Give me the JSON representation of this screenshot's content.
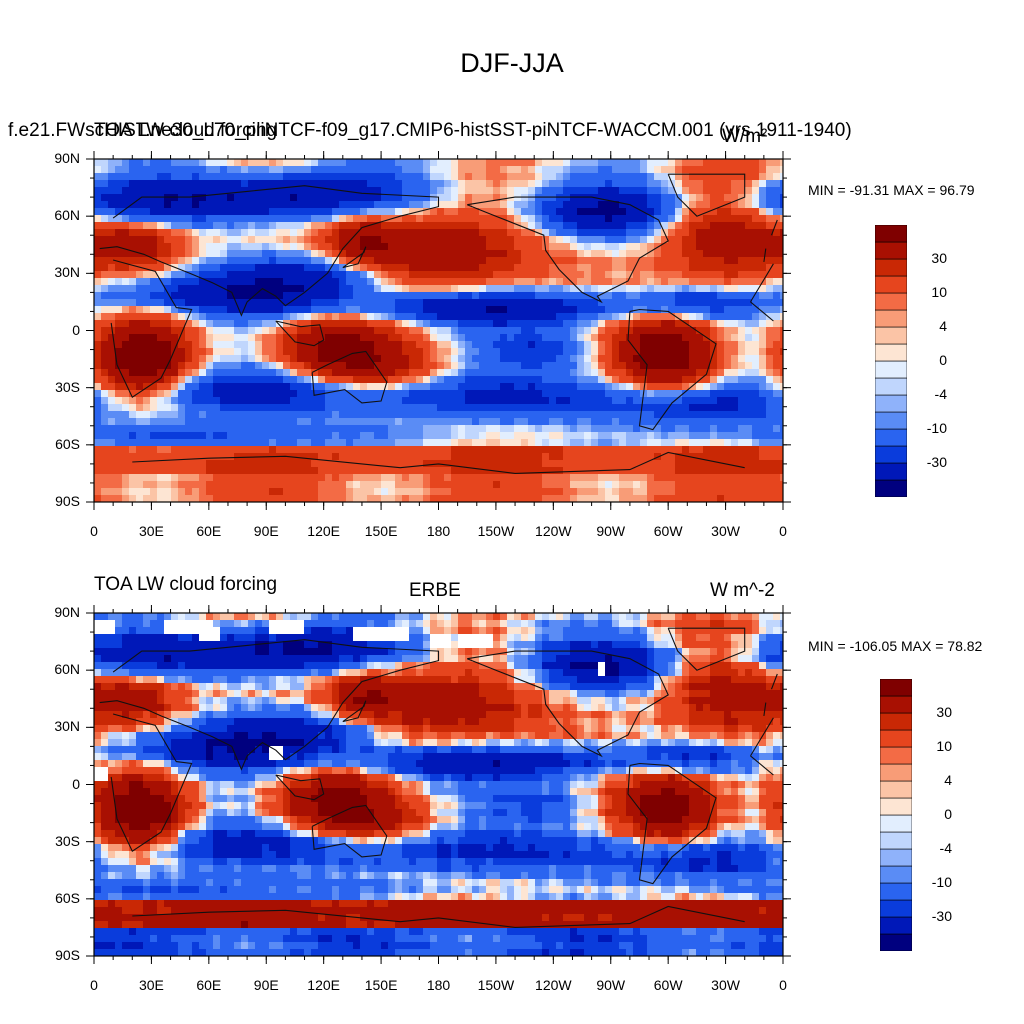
{
  "main_title": "DJF-JJA",
  "palette": [
    "#00007f",
    "#0018b8",
    "#0a3cdc",
    "#2a64f0",
    "#5a8cf5",
    "#8fb2fa",
    "#c0d6fd",
    "#e2eefe",
    "#fde5d3",
    "#fbc4a6",
    "#f89c77",
    "#f36b45",
    "#e6451e",
    "#c92805",
    "#a81002",
    "#7f0000"
  ],
  "axes": {
    "y_ticks": [
      "90N",
      "60N",
      "30N",
      "0",
      "30S",
      "60S",
      "90S"
    ],
    "x_ticks": [
      "0",
      "30E",
      "60E",
      "90E",
      "120E",
      "150E",
      "180",
      "150W",
      "120W",
      "90W",
      "60W",
      "30W",
      "0"
    ]
  },
  "panels": [
    {
      "id": "model",
      "left_title": "TOA LW cloud forcing",
      "center_title": "f.e21.FWscHIST.ne30_L70_pliNTCF-f09_g17.CMIP6-histSST-piNTCF-WACCM.001 (yrs 1911-1940)",
      "units": "W/m²",
      "minmax": "MIN = -91.31 MAX =  96.79",
      "has_missing": false
    },
    {
      "id": "obs",
      "left_title": "TOA LW cloud forcing",
      "center_title": "ERBE",
      "units": "W m^-2",
      "minmax": "MIN = -106.05 MAX =  78.82",
      "has_missing": true
    }
  ],
  "colorbar": {
    "labels": [
      "30",
      "10",
      "4",
      "0",
      "-4",
      "-10",
      "-30"
    ]
  }
}
